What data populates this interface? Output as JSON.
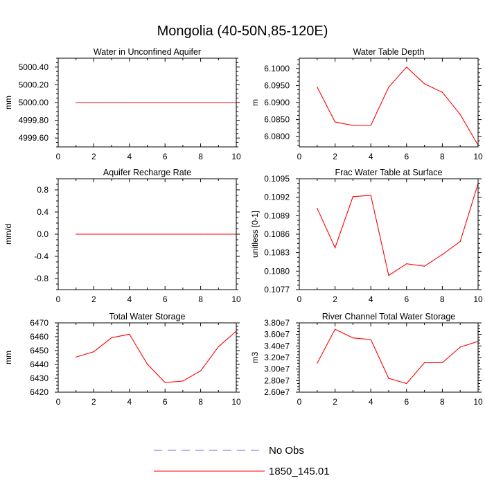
{
  "page_title": "Mongolia (40-50N,85-120E)",
  "colors": {
    "model": "#ff0000",
    "obs": "#6b6bd6",
    "axes": "#000000"
  },
  "legend": [
    {
      "label": "No Obs",
      "style": "dashed",
      "color": "#6b6bd6"
    },
    {
      "label": "1850_145.01",
      "style": "solid",
      "color": "#ff0000"
    }
  ],
  "chart_data": [
    {
      "type": "line",
      "title": "Water in Unconfined Aquifer",
      "ylabel": "mm",
      "xlim": [
        0,
        10
      ],
      "ylim": [
        4999.5,
        5000.5
      ],
      "xticks": [
        0,
        2,
        4,
        6,
        8,
        10
      ],
      "yticks": [
        4999.6,
        4999.8,
        5000.0,
        5000.2,
        5000.4
      ],
      "ytick_labels": [
        "4999.60",
        "4999.80",
        "5000.00",
        "5000.20",
        "5000.40"
      ],
      "grid": false,
      "series": [
        {
          "name": "1850_145.01",
          "x": [
            1,
            2,
            3,
            4,
            5,
            6,
            7,
            8,
            9,
            10
          ],
          "values": [
            5000,
            5000,
            5000,
            5000,
            5000,
            5000,
            5000,
            5000,
            5000,
            5000
          ]
        }
      ]
    },
    {
      "type": "line",
      "title": "Water Table Depth",
      "ylabel": "m",
      "xlim": [
        0,
        10
      ],
      "ylim": [
        6.077,
        6.103
      ],
      "xticks": [
        0,
        2,
        4,
        6,
        8,
        10
      ],
      "yticks": [
        6.08,
        6.085,
        6.09,
        6.095,
        6.1
      ],
      "ytick_labels": [
        "6.0800",
        "6.0850",
        "6.0900",
        "6.0950",
        "6.1000"
      ],
      "grid": false,
      "series": [
        {
          "name": "1850_145.01",
          "x": [
            1,
            2,
            3,
            4,
            5,
            6,
            7,
            8,
            9,
            10
          ],
          "values": [
            6.0945,
            6.0843,
            6.0833,
            6.0833,
            6.0945,
            6.1004,
            6.0955,
            6.093,
            6.0865,
            6.0775
          ]
        }
      ]
    },
    {
      "type": "line",
      "title": "Aquifer Recharge Rate",
      "ylabel": "mm/d",
      "xlim": [
        0,
        10
      ],
      "ylim": [
        -1.0,
        1.0
      ],
      "xticks": [
        0,
        2,
        4,
        6,
        8,
        10
      ],
      "yticks": [
        -0.8,
        -0.4,
        0.0,
        0.4,
        0.8
      ],
      "ytick_labels": [
        "-0.8",
        "-0.4",
        "0.0",
        "0.4",
        "0.8"
      ],
      "grid": false,
      "series": [
        {
          "name": "1850_145.01",
          "x": [
            1,
            2,
            3,
            4,
            5,
            6,
            7,
            8,
            9,
            10
          ],
          "values": [
            0,
            0,
            0,
            0,
            0,
            0,
            0,
            0,
            0,
            0
          ]
        }
      ]
    },
    {
      "type": "line",
      "title": "Frac Water Table at Surface",
      "ylabel": "unitless [0-1]",
      "xlim": [
        0,
        10
      ],
      "ylim": [
        0.1077,
        0.1095
      ],
      "xticks": [
        0,
        2,
        4,
        6,
        8,
        10
      ],
      "yticks": [
        0.1077,
        0.108,
        0.1083,
        0.1086,
        0.1089,
        0.1092,
        0.1095
      ],
      "ytick_labels": [
        "0.1077",
        "0.1080",
        "0.1083",
        "0.1086",
        "0.1089",
        "0.1092",
        "0.1095"
      ],
      "grid": false,
      "series": [
        {
          "name": "1850_145.01",
          "x": [
            1,
            2,
            3,
            4,
            5,
            6,
            7,
            8,
            9,
            10
          ],
          "values": [
            0.10902,
            0.10838,
            0.10921,
            0.10923,
            0.10793,
            0.10812,
            0.10808,
            0.10827,
            0.10848,
            0.10942
          ]
        }
      ]
    },
    {
      "type": "line",
      "title": "Total Water Storage",
      "ylabel": "mm",
      "xlim": [
        0,
        10
      ],
      "ylim": [
        6420,
        6470
      ],
      "xticks": [
        0,
        2,
        4,
        6,
        8,
        10
      ],
      "yticks": [
        6420,
        6430,
        6440,
        6450,
        6460,
        6470
      ],
      "ytick_labels": [
        "6420",
        "6430",
        "6440",
        "6450",
        "6460",
        "6470"
      ],
      "grid": false,
      "series": [
        {
          "name": "1850_145.01",
          "x": [
            1,
            2,
            3,
            4,
            5,
            6,
            7,
            8,
            9,
            10
          ],
          "values": [
            6445.3,
            6449.2,
            6459.3,
            6461.8,
            6440.3,
            6427.0,
            6428.0,
            6435.4,
            6452.8,
            6464.0
          ]
        }
      ]
    },
    {
      "type": "line",
      "title": "River Channel Total Water Storage",
      "ylabel": "m3",
      "xlim": [
        0,
        10
      ],
      "ylim": [
        26000000,
        38000000
      ],
      "xticks": [
        0,
        2,
        4,
        6,
        8,
        10
      ],
      "yticks": [
        26000000,
        28000000,
        30000000,
        32000000,
        34000000,
        36000000,
        38000000
      ],
      "ytick_labels": [
        "2.60e7",
        "2.80e7",
        "3.00e7",
        "3.20e7",
        "3.40e7",
        "3.60e7",
        "3.80e7"
      ],
      "grid": false,
      "series": [
        {
          "name": "1850_145.01",
          "x": [
            1,
            2,
            3,
            4,
            5,
            6,
            7,
            8,
            9,
            10
          ],
          "values": [
            31000000,
            36900000,
            35400000,
            35100000,
            28400000,
            27500000,
            31100000,
            31100000,
            33800000,
            34800000
          ]
        }
      ]
    }
  ]
}
